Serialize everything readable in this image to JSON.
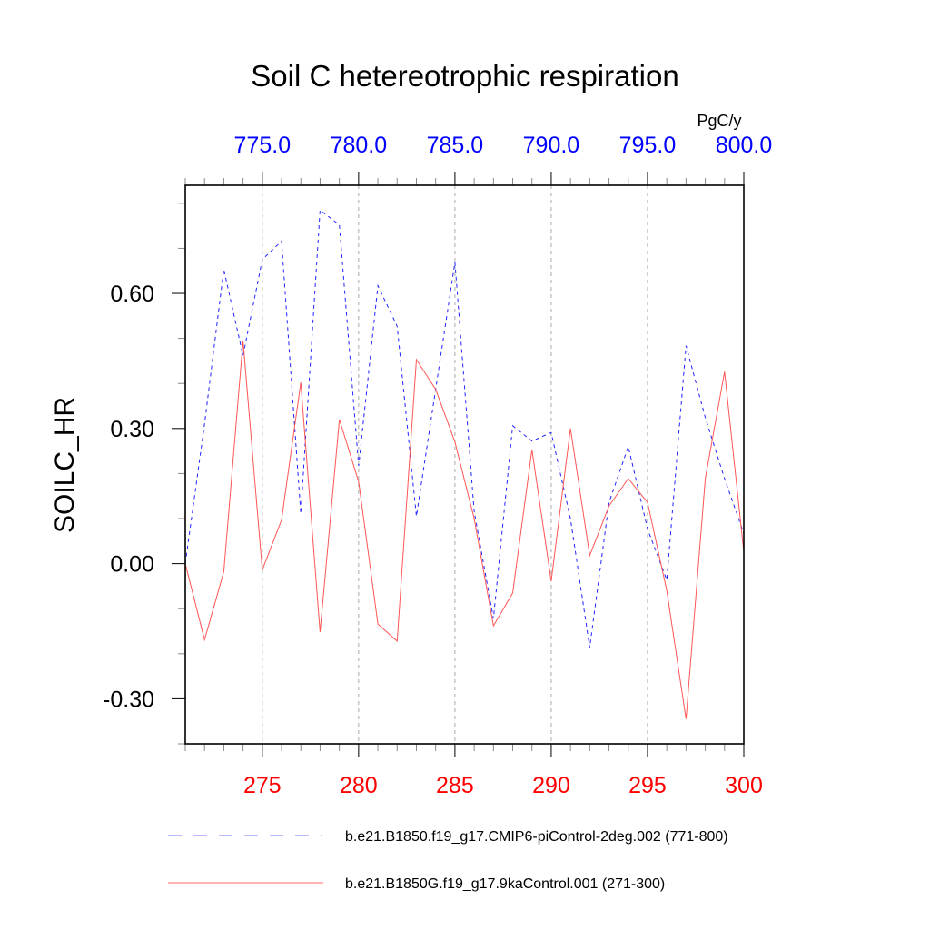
{
  "chart_data": {
    "type": "line",
    "title": "Soil C hetereotrophic respiration",
    "ylabel": "SOILC_HR",
    "units": "PgC/y",
    "xlabel": "",
    "x_bottom": {
      "range": [
        271,
        300
      ],
      "ticks": [
        275,
        280,
        285,
        290,
        295,
        300
      ],
      "tick_labels": [
        "275",
        "280",
        "285",
        "290",
        "295",
        "300"
      ],
      "color": "#ff0000"
    },
    "x_top": {
      "range": [
        771,
        800
      ],
      "ticks": [
        775,
        780,
        785,
        790,
        795,
        800
      ],
      "tick_labels": [
        "775.0",
        "780.0",
        "785.0",
        "790.0",
        "795.0",
        "800.0"
      ],
      "color": "#0000ff"
    },
    "ylim": [
      -0.4,
      0.84
    ],
    "yticks": [
      -0.3,
      0.0,
      0.3,
      0.6
    ],
    "ytick_labels": [
      "-0.30",
      "0.00",
      "0.30",
      "0.60"
    ],
    "grid": "vertical dashed at major x ticks",
    "legend_placement": "bottom",
    "series": [
      {
        "name": "b.e21.B1850.f19_g17.CMIP6-piControl-2deg.002 (771-800)",
        "axis": "top",
        "color": "#0000ff",
        "style": "dashed",
        "x": [
          771,
          772,
          773,
          774,
          775,
          776,
          777,
          778,
          779,
          780,
          781,
          782,
          783,
          784,
          785,
          786,
          787,
          788,
          789,
          790,
          791,
          792,
          793,
          794,
          795,
          796,
          797,
          798,
          799,
          800
        ],
        "values": [
          0.0,
          0.31,
          0.653,
          0.462,
          0.675,
          0.716,
          0.111,
          0.785,
          0.752,
          0.217,
          0.617,
          0.527,
          0.105,
          0.387,
          0.669,
          0.116,
          -0.122,
          0.306,
          0.272,
          0.291,
          0.1,
          -0.186,
          0.136,
          0.26,
          0.077,
          -0.036,
          0.484,
          0.324,
          0.189,
          0.067
        ]
      },
      {
        "name": "b.e21.B1850G.f19_g17.9kaControl.001 (271-300)",
        "axis": "bottom",
        "color": "#ff0000",
        "style": "solid",
        "x": [
          271,
          272,
          273,
          274,
          275,
          276,
          277,
          278,
          279,
          280,
          281,
          282,
          283,
          284,
          285,
          286,
          287,
          288,
          289,
          290,
          291,
          292,
          293,
          294,
          295,
          296,
          297,
          298,
          299,
          300
        ],
        "values": [
          0.0,
          -0.169,
          -0.018,
          0.495,
          -0.014,
          0.097,
          0.402,
          -0.152,
          0.32,
          0.182,
          -0.134,
          -0.172,
          0.453,
          0.387,
          0.27,
          0.1,
          -0.138,
          -0.065,
          0.253,
          -0.039,
          0.3,
          0.018,
          0.128,
          0.189,
          0.136,
          -0.06,
          -0.345,
          0.189,
          0.426,
          0.026
        ]
      }
    ]
  }
}
